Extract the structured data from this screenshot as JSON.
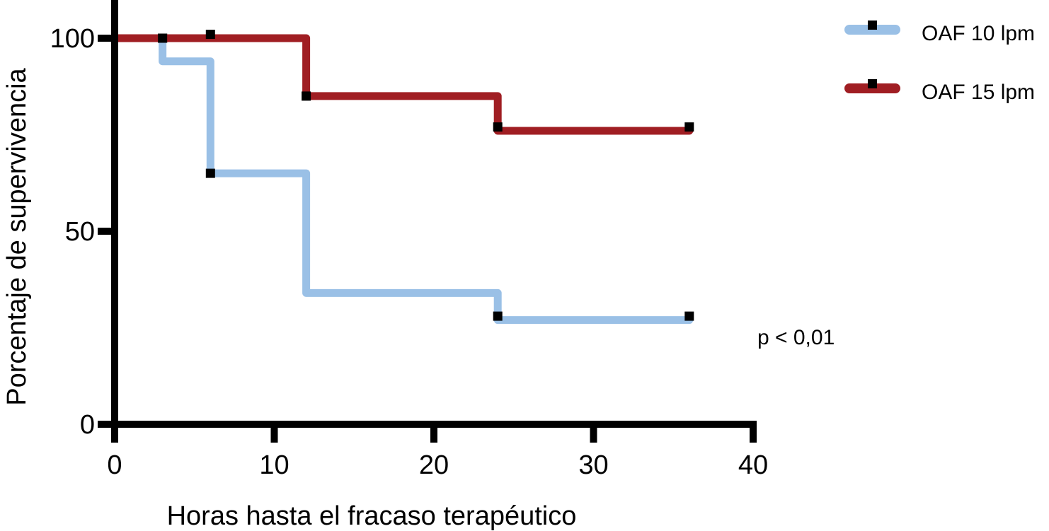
{
  "chart_data": {
    "type": "line",
    "subtype": "kaplan-meier-step",
    "title": "",
    "xlabel": "Horas hasta el fracaso terapéutico",
    "ylabel": "Porcentaje de supervivencia",
    "xlim": [
      0,
      40
    ],
    "ylim": [
      0,
      100
    ],
    "xticks": [
      0,
      10,
      20,
      30,
      40
    ],
    "yticks": [
      0,
      50,
      100
    ],
    "grid": false,
    "legend_position": "top-right",
    "annotation": "p < 0,01",
    "series": [
      {
        "name": "OAF 10 lpm",
        "color": "#9ac0e6",
        "steps": [
          [
            0,
            100
          ],
          [
            3,
            94
          ],
          [
            6,
            65
          ],
          [
            12,
            34
          ],
          [
            24,
            27
          ],
          [
            36,
            27
          ]
        ],
        "markers": [
          [
            3,
            100
          ],
          [
            6,
            65
          ],
          [
            24,
            28
          ],
          [
            36,
            28
          ]
        ]
      },
      {
        "name": "OAF 15 lpm",
        "color": "#a01e23",
        "steps": [
          [
            0,
            100
          ],
          [
            12,
            85
          ],
          [
            24,
            76
          ],
          [
            36,
            76
          ]
        ],
        "markers": [
          [
            3,
            100
          ],
          [
            6,
            101
          ],
          [
            12,
            85
          ],
          [
            24,
            77
          ],
          [
            36,
            77
          ]
        ]
      }
    ]
  }
}
